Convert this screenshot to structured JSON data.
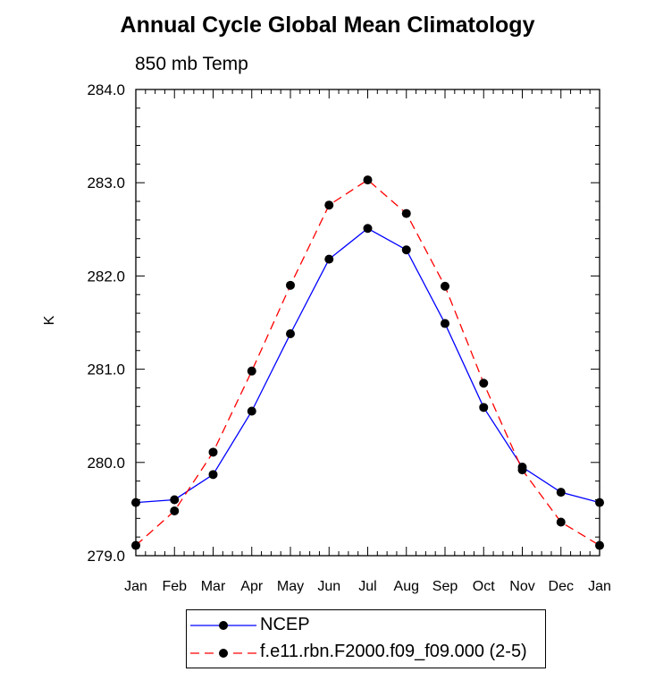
{
  "chart_data": {
    "type": "line",
    "title": "Annual Cycle Global Mean Climatology",
    "subtitle": "850 mb Temp",
    "xlabel": "",
    "ylabel": "K",
    "categories": [
      "Jan",
      "Feb",
      "Mar",
      "Apr",
      "May",
      "Jun",
      "Jul",
      "Aug",
      "Sep",
      "Oct",
      "Nov",
      "Dec",
      "Jan"
    ],
    "ylim": [
      279.0,
      284.0
    ],
    "yticks": [
      "279.0",
      "280.0",
      "281.0",
      "282.0",
      "283.0",
      "284.0"
    ],
    "grid": false,
    "legend_position": "bottom",
    "series": [
      {
        "name": "NCEP",
        "color": "#0000ff",
        "dash": "solid",
        "marker": "filled-circle",
        "values": [
          279.57,
          279.6,
          279.87,
          280.55,
          281.38,
          282.18,
          282.51,
          282.28,
          281.49,
          280.59,
          279.95,
          279.68,
          279.57
        ]
      },
      {
        "name": "f.e11.rbn.F2000.f09_f09.000 (2-5)",
        "color": "#ff0000",
        "dash": "dashed",
        "marker": "filled-circle",
        "values": [
          279.11,
          279.48,
          280.11,
          280.98,
          281.9,
          282.76,
          283.03,
          282.67,
          281.89,
          280.85,
          279.92,
          279.36,
          279.11
        ]
      }
    ]
  }
}
